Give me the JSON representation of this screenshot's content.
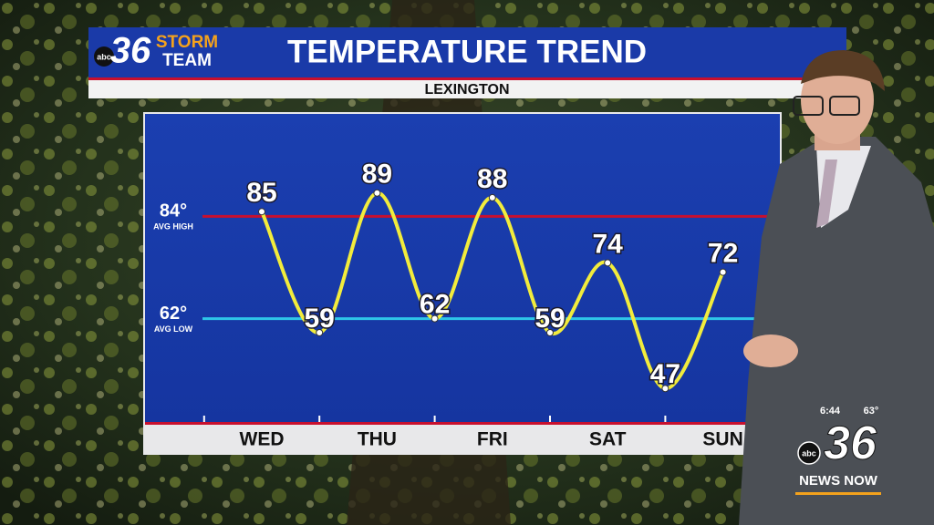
{
  "branding": {
    "station": "36",
    "network": "abc",
    "storm": "STORM",
    "team": "TEAM",
    "news": "NEWS NOW"
  },
  "clock": {
    "time": "6:44",
    "temperature": "63°"
  },
  "chart_data": {
    "type": "line",
    "title": "TEMPERATURE TREND",
    "subtitle": "LEXINGTON",
    "categories": [
      "WED",
      null,
      "THU",
      null,
      "FRI",
      null,
      "SAT",
      null,
      "SUN"
    ],
    "values": [
      85,
      59,
      89,
      62,
      88,
      59,
      74,
      47,
      72
    ],
    "color": "#f2ec3c",
    "ylim": [
      40,
      106
    ],
    "reference_lines": [
      {
        "value": 84,
        "label": "84°",
        "name": "AVG HIGH",
        "color": "#c8102e"
      },
      {
        "value": 62,
        "label": "62°",
        "name": "AVG LOW",
        "color": "#2ec6e8"
      }
    ]
  }
}
